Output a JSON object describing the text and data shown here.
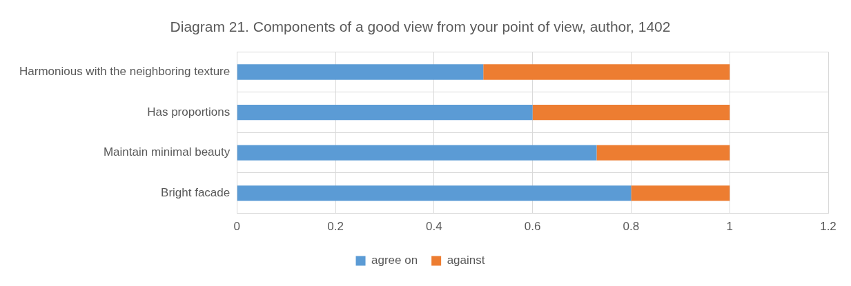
{
  "chart_data": {
    "type": "bar",
    "orientation": "horizontal",
    "stacked": true,
    "title": "Diagram 21. Components of a good view from your point of view, author, 1402",
    "categories": [
      "Harmonious with the neighboring texture",
      "Has proportions",
      "Maintain minimal beauty",
      "Bright facade"
    ],
    "series": [
      {
        "name": "agree on",
        "color": "#5b9bd5",
        "values": [
          0.5,
          0.6,
          0.73,
          0.8
        ]
      },
      {
        "name": "against",
        "color": "#ed7d31",
        "values": [
          0.5,
          0.4,
          0.27,
          0.2
        ]
      }
    ],
    "xlim": [
      0,
      1.2
    ],
    "xticks": [
      0,
      0.2,
      0.4,
      0.6,
      0.8,
      1,
      1.2
    ],
    "grid": true,
    "legend": "bottom"
  }
}
